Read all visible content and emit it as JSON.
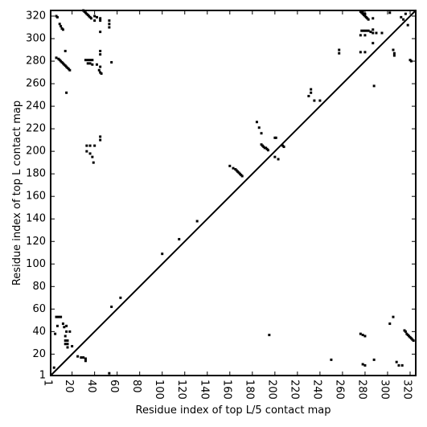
{
  "chart_data": {
    "type": "scatter",
    "xlabel": "Residue index of top L/5 contact map",
    "ylabel": "Residue index of top L contact map",
    "xlim": [
      1,
      325
    ],
    "ylim": [
      1,
      325
    ],
    "xticks": [
      1,
      20,
      40,
      60,
      80,
      100,
      120,
      140,
      160,
      180,
      200,
      220,
      240,
      260,
      280,
      300,
      320
    ],
    "yticks": [
      1,
      20,
      40,
      60,
      80,
      100,
      120,
      140,
      160,
      180,
      200,
      220,
      240,
      260,
      280,
      300,
      320
    ],
    "diagonal": true,
    "series": [
      {
        "color": "#000000",
        "x": [
          6,
          8,
          9,
          10,
          11,
          12,
          13,
          14,
          15,
          16,
          17,
          18,
          15,
          6,
          7,
          9,
          10,
          11,
          12,
          14,
          30,
          31,
          32,
          33,
          34,
          35,
          36,
          37,
          40,
          42,
          45,
          40,
          45,
          45,
          53,
          53,
          53,
          32,
          34,
          36,
          38,
          34,
          36,
          38,
          42,
          45,
          44,
          45,
          46,
          45,
          45,
          55,
          33,
          36,
          40,
          33,
          36,
          38,
          39,
          45,
          45,
          232,
          232,
          230,
          235,
          240,
          257,
          257,
          276,
          277,
          278,
          279,
          280,
          281,
          282,
          283,
          280,
          278,
          277,
          279,
          281,
          283,
          285,
          287,
          287,
          276,
          280,
          287,
          290,
          295,
          276,
          280,
          287,
          288,
          305,
          306,
          306,
          302,
          312,
          314,
          318,
          316,
          320,
          321,
          160,
          163,
          165,
          166,
          167,
          168,
          169,
          170,
          171,
          184,
          186,
          188,
          188,
          189,
          190,
          191,
          192,
          193,
          194,
          200,
          201,
          200,
          203,
          207,
          208,
          115,
          100,
          131,
          63,
          55
        ],
        "y": [
          283,
          282,
          281,
          280,
          279,
          278,
          277,
          276,
          275,
          274,
          273,
          272,
          252,
          320,
          319,
          313,
          311,
          309,
          308,
          289,
          325,
          324,
          323,
          322,
          321,
          320,
          319,
          318,
          320,
          319,
          318,
          316,
          316,
          306,
          316,
          313,
          310,
          281,
          281,
          281,
          281,
          278,
          278,
          277,
          277,
          275,
          272,
          270,
          269,
          289,
          286,
          279,
          205,
          205,
          205,
          200,
          198,
          195,
          190,
          213,
          210,
          255,
          252,
          249,
          245,
          245,
          290,
          287,
          324,
          323,
          322,
          321,
          320,
          319,
          318,
          317,
          322,
          324,
          307,
          307,
          307,
          307,
          306,
          305,
          308,
          303,
          303,
          318,
          305,
          305,
          288,
          288,
          296,
          258,
          290,
          287,
          285,
          323,
          319,
          317,
          312,
          322,
          281,
          280,
          187,
          185,
          184,
          183,
          182,
          181,
          180,
          179,
          178,
          226,
          221,
          216,
          206,
          205,
          204,
          203,
          203,
          202,
          201,
          212,
          212,
          195,
          193,
          205,
          204,
          122,
          109,
          138,
          70,
          62
        ]
      },
      {
        "color": "#000000",
        "x": [
          6,
          8,
          10,
          12,
          13,
          15,
          15,
          14,
          14,
          14,
          16,
          16,
          16,
          18,
          7,
          5,
          20,
          25,
          28,
          30,
          32,
          32,
          4,
          53,
          195,
          250,
          276,
          278,
          280,
          280,
          278,
          288,
          302,
          305,
          308,
          310,
          313,
          315,
          316,
          317,
          318,
          319,
          320,
          321,
          322,
          323
        ],
        "y": [
          53,
          53,
          53,
          47,
          44,
          45,
          40,
          36,
          32,
          29,
          32,
          29,
          26,
          40,
          45,
          38,
          27,
          18,
          17,
          17,
          16,
          14,
          8,
          3,
          37,
          15,
          38,
          37,
          36,
          10,
          11,
          15,
          47,
          53,
          13,
          10,
          10,
          41,
          40,
          38,
          37,
          36,
          35,
          34,
          33,
          32
        ]
      }
    ]
  }
}
